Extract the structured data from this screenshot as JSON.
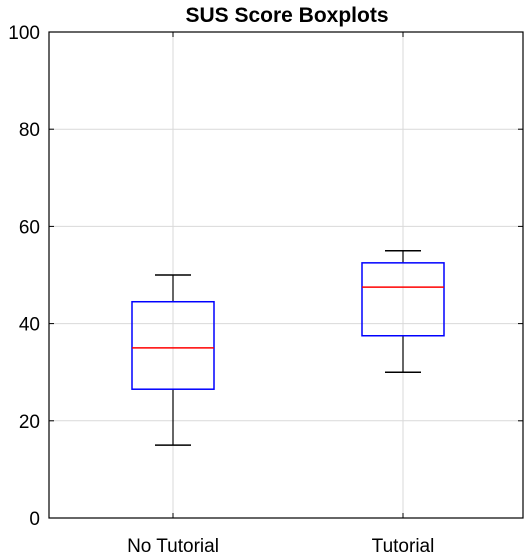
{
  "chart_data": {
    "type": "boxplot",
    "title": "SUS Score Boxplots",
    "xlabel": "",
    "ylabel": "",
    "ylim": [
      0,
      100
    ],
    "yticks": [
      0,
      20,
      40,
      60,
      80,
      100
    ],
    "grid": true,
    "categories": [
      "No Tutorial",
      "Tutorial"
    ],
    "boxes": [
      {
        "category": "No Tutorial",
        "whisker_low": 15,
        "q1": 26.5,
        "median": 35,
        "q3": 44.5,
        "whisker_high": 50
      },
      {
        "category": "Tutorial",
        "whisker_low": 30,
        "q1": 37.5,
        "median": 47.5,
        "q3": 52.5,
        "whisker_high": 55
      }
    ],
    "colors": {
      "box": "#0000ff",
      "median": "#ff0000",
      "whisker": "#000000",
      "grid": "#d9d9d9"
    }
  }
}
